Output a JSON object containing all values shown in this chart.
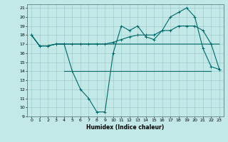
{
  "xlabel": "Humidex (Indice chaleur)",
  "ylabel": "",
  "bg_color": "#c2e8e8",
  "grid_color": "#a0cccc",
  "line_color": "#006868",
  "xlim": [
    -0.5,
    23.5
  ],
  "ylim": [
    9,
    21.4
  ],
  "yticks": [
    9,
    10,
    11,
    12,
    13,
    14,
    15,
    16,
    17,
    18,
    19,
    20,
    21
  ],
  "xticks": [
    0,
    1,
    2,
    3,
    4,
    5,
    6,
    7,
    8,
    9,
    10,
    11,
    12,
    13,
    14,
    15,
    16,
    17,
    18,
    19,
    20,
    21,
    22,
    23
  ],
  "line1": [
    18,
    16.8,
    16.8,
    17,
    17,
    17,
    17,
    17,
    17,
    17,
    17,
    17,
    17,
    17,
    17,
    17,
    17,
    17,
    17,
    17,
    17,
    17,
    17,
    17
  ],
  "line2": [
    18,
    16.8,
    16.8,
    17,
    17,
    17,
    17,
    17,
    17,
    17,
    17.2,
    17.5,
    17.8,
    18,
    18,
    18,
    18.5,
    18.5,
    19,
    19,
    19,
    18.5,
    17,
    14.2
  ],
  "line3": [
    18,
    16.8,
    16.8,
    17,
    17,
    14,
    12,
    11,
    9.5,
    9.5,
    16,
    19,
    18.5,
    19,
    17.8,
    17.5,
    18.5,
    20,
    20.5,
    21,
    20,
    16.5,
    14.5,
    14.2
  ],
  "line1_flat": [
    14,
    14,
    14,
    14,
    14,
    14,
    14,
    14,
    14,
    14,
    14,
    14,
    14,
    14,
    14,
    14,
    14,
    14,
    14
  ],
  "line1_flat_x": [
    4,
    5,
    6,
    7,
    8,
    9,
    10,
    11,
    12,
    13,
    14,
    15,
    16,
    17,
    18,
    19,
    20,
    21,
    22
  ]
}
